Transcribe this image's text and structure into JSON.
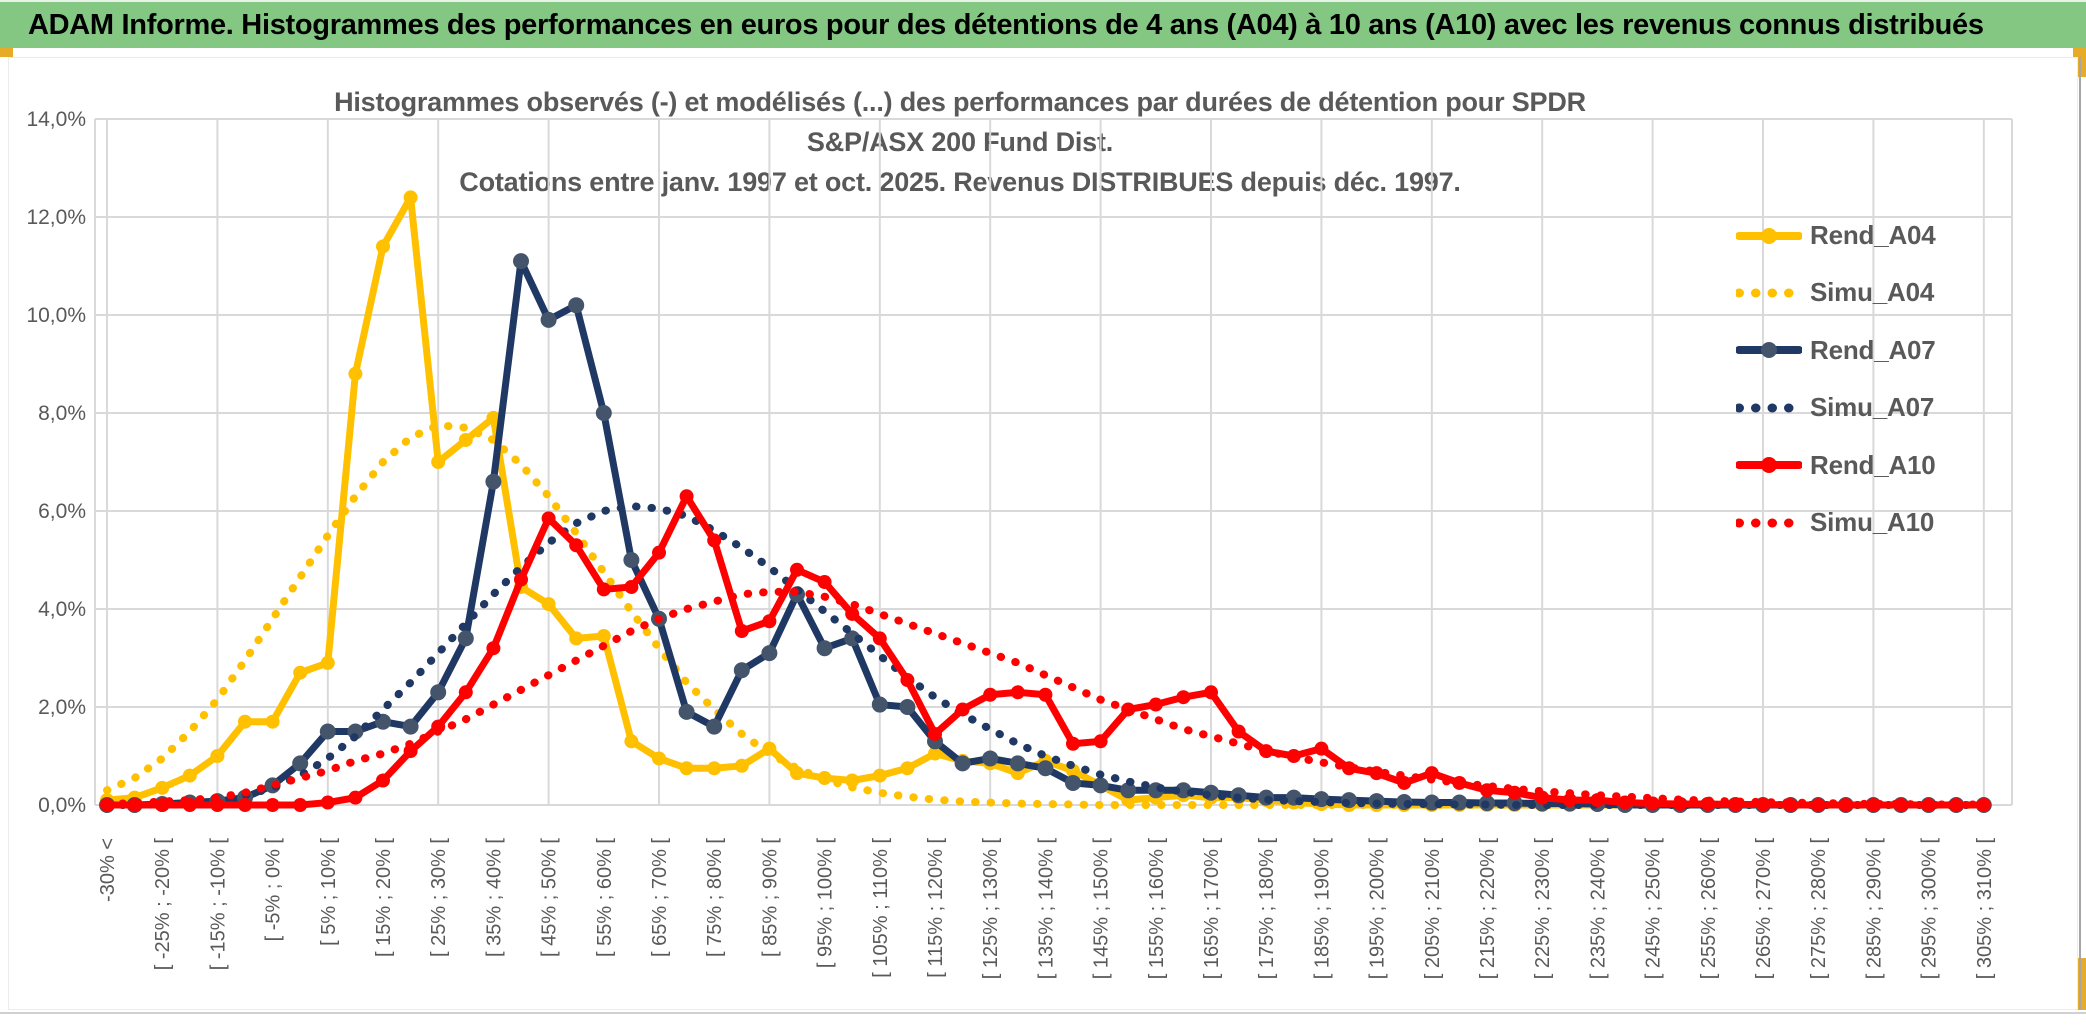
{
  "header": {
    "title": "ADAM Informe. Histogrammes des performances en euros pour des détentions de 4 ans (A04) à 10 ans (A10) avec les revenus connus distribués"
  },
  "chart_data": {
    "type": "line",
    "title_line1": "Histogrammes observés (-) et modélisés (...) des performances par durées de détention pour SPDR S&P/ASX 200 Fund Dist.",
    "title_line2": "Cotations entre janv. 1997 et oct. 2025. Revenus DISTRIBUES depuis déc. 1997.",
    "ylabel": "",
    "xlabel": "",
    "ylim": [
      0,
      14
    ],
    "y_tick_labels": [
      "0,0%",
      "2,0%",
      "4,0%",
      "6,0%",
      "8,0%",
      "10,0%",
      "12,0%",
      "14,0%"
    ],
    "grid": true,
    "legend_position": "right",
    "n_bins": 69,
    "bin_width_pct": 5,
    "categories": [
      "-30% <",
      "[ -25% ; -20% [",
      "[ -15% ; -10% [",
      "[ -5% ; 0% [",
      "[ 5% ; 10% [",
      "[ 15% ; 20% [",
      "[ 25% ; 30% [",
      "[ 35% ; 40% [",
      "[ 45% ; 50% [",
      "[ 55% ; 60% [",
      "[ 65% ; 70% [",
      "[ 75% ; 80% [",
      "[ 85% ; 90% [",
      "[ 95% ; 100% [",
      "[ 105% ; 110% [",
      "[ 115% ; 120% [",
      "[ 125% ; 130% [",
      "[ 135% ; 140% [",
      "[ 145% ; 150% [",
      "[ 155% ; 160% [",
      "[ 165% ; 170% [",
      "[ 175% ; 180% [",
      "[ 185% ; 190% [",
      "[ 195% ; 200% [",
      "[ 205% ; 210% [",
      "[ 215% ; 220% [",
      "[ 225% ; 230% [",
      "[ 235% ; 240% [",
      "[ 245% ; 250% [",
      "[ 255% ; 260% [",
      "[ 265% ; 270% [",
      "[ 275% ; 280% [",
      "[ 285% ; 290% [",
      "[ 295% ; 300% [",
      "[ 305% ; 310% ["
    ],
    "series": [
      {
        "name": "Rend_A04",
        "style": "solid",
        "color": "#FFC000",
        "marker_color": "#FFC000",
        "values": [
          0.1,
          0.15,
          0.35,
          0.6,
          1.0,
          1.7,
          1.7,
          2.7,
          2.9,
          8.8,
          11.4,
          12.4,
          7.0,
          7.45,
          7.9,
          4.45,
          4.1,
          3.4,
          3.45,
          1.3,
          0.95,
          0.75,
          0.75,
          0.8,
          1.15,
          0.65,
          0.55,
          0.5,
          0.6,
          0.75,
          1.05,
          0.9,
          0.85,
          0.65,
          0.9,
          0.7,
          0.4,
          0.1,
          0.15,
          0.2,
          0.15,
          0.15,
          0.1,
          0.05,
          0.02,
          0,
          0,
          0,
          0,
          0,
          0,
          0,
          0,
          0,
          0,
          0,
          0,
          0,
          0,
          0,
          0,
          0,
          0,
          0,
          0,
          0,
          0,
          0,
          0
        ]
      },
      {
        "name": "Simu_A04",
        "style": "dotted",
        "color": "#FFC000",
        "values": [
          0.3,
          0.55,
          0.95,
          1.5,
          2.15,
          2.95,
          3.8,
          4.65,
          5.5,
          6.3,
          7.0,
          7.5,
          7.75,
          7.7,
          7.45,
          6.95,
          6.3,
          5.55,
          4.75,
          3.95,
          3.2,
          2.5,
          1.95,
          1.45,
          1.05,
          0.75,
          0.52,
          0.36,
          0.25,
          0.17,
          0.11,
          0.07,
          0.05,
          0.03,
          0.02,
          0.01,
          0,
          0,
          0,
          0,
          0,
          0,
          0,
          0,
          0,
          0,
          0,
          0,
          0,
          0,
          0,
          0,
          0,
          0,
          0,
          0,
          0,
          0,
          0,
          0,
          0,
          0,
          0,
          0,
          0,
          0,
          0,
          0,
          0
        ]
      },
      {
        "name": "Rend_A07",
        "style": "solid",
        "color": "#1F3864",
        "marker_color": "#44546A",
        "values": [
          0,
          0,
          0.02,
          0.05,
          0.08,
          0.15,
          0.4,
          0.85,
          1.5,
          1.5,
          1.7,
          1.6,
          2.3,
          3.4,
          6.6,
          11.1,
          9.9,
          10.2,
          8.0,
          5.0,
          3.8,
          1.9,
          1.6,
          2.75,
          3.1,
          4.3,
          3.2,
          3.4,
          2.05,
          2.0,
          1.3,
          0.85,
          0.95,
          0.85,
          0.75,
          0.45,
          0.4,
          0.3,
          0.3,
          0.3,
          0.25,
          0.2,
          0.15,
          0.15,
          0.12,
          0.1,
          0.08,
          0.06,
          0.05,
          0.05,
          0.04,
          0.04,
          0.03,
          0.03,
          0.02,
          0,
          0,
          0,
          0,
          0,
          0,
          0,
          0,
          0,
          0,
          0,
          0,
          0,
          0
        ]
      },
      {
        "name": "Simu_A07",
        "style": "dotted",
        "color": "#1F3864",
        "values": [
          0,
          0,
          0.02,
          0.05,
          0.1,
          0.2,
          0.35,
          0.6,
          0.95,
          1.4,
          1.95,
          2.5,
          3.1,
          3.7,
          4.3,
          4.85,
          5.35,
          5.75,
          6.0,
          6.1,
          6.05,
          5.9,
          5.6,
          5.25,
          4.85,
          4.4,
          3.95,
          3.5,
          3.05,
          2.6,
          2.2,
          1.85,
          1.55,
          1.25,
          1.0,
          0.8,
          0.62,
          0.48,
          0.36,
          0.27,
          0.2,
          0.15,
          0.11,
          0.08,
          0.06,
          0.04,
          0.03,
          0.02,
          0.02,
          0.01,
          0.01,
          0,
          0,
          0,
          0,
          0,
          0,
          0,
          0,
          0,
          0,
          0,
          0,
          0,
          0,
          0,
          0,
          0,
          0
        ]
      },
      {
        "name": "Rend_A10",
        "style": "solid",
        "color": "#FF0000",
        "marker_color": "#FF0000",
        "values": [
          0,
          0,
          0,
          0,
          0,
          0,
          0,
          0,
          0.05,
          0.15,
          0.5,
          1.1,
          1.6,
          2.3,
          3.2,
          4.6,
          5.85,
          5.3,
          4.4,
          4.45,
          5.15,
          6.3,
          5.4,
          3.55,
          3.75,
          4.8,
          4.55,
          3.9,
          3.4,
          2.55,
          1.45,
          1.95,
          2.25,
          2.3,
          2.25,
          1.25,
          1.3,
          1.95,
          2.05,
          2.2,
          2.3,
          1.5,
          1.1,
          1.0,
          1.15,
          0.75,
          0.65,
          0.45,
          0.65,
          0.45,
          0.3,
          0.25,
          0.15,
          0.1,
          0.1,
          0.05,
          0.03,
          0.02,
          0.02,
          0.01,
          0.01,
          0,
          0,
          0,
          0,
          0,
          0,
          0,
          0
        ]
      },
      {
        "name": "Simu_A10",
        "style": "dotted",
        "color": "#FF0000",
        "values": [
          0.02,
          0.04,
          0.07,
          0.1,
          0.15,
          0.25,
          0.4,
          0.55,
          0.7,
          0.9,
          1.05,
          1.25,
          1.5,
          1.75,
          2.05,
          2.35,
          2.65,
          2.95,
          3.25,
          3.55,
          3.8,
          4.0,
          4.15,
          4.3,
          4.35,
          4.35,
          4.25,
          4.1,
          3.9,
          3.7,
          3.5,
          3.3,
          3.1,
          2.9,
          2.65,
          2.4,
          2.15,
          1.95,
          1.75,
          1.55,
          1.4,
          1.25,
          1.1,
          0.98,
          0.87,
          0.77,
          0.68,
          0.6,
          0.52,
          0.45,
          0.39,
          0.33,
          0.28,
          0.24,
          0.2,
          0.17,
          0.14,
          0.11,
          0.09,
          0.07,
          0.06,
          0.05,
          0.04,
          0.03,
          0.02,
          0.02,
          0.01,
          0.01,
          0.01
        ]
      }
    ],
    "colors": {
      "gold": "#FFC000",
      "navy": "#1F3864",
      "navy_marker": "#44546A",
      "red": "#FF0000",
      "grid": "#D9D9D9",
      "axis_text": "#595959",
      "header_green": "#84C783",
      "accent_gold": "#E6AC28"
    }
  }
}
